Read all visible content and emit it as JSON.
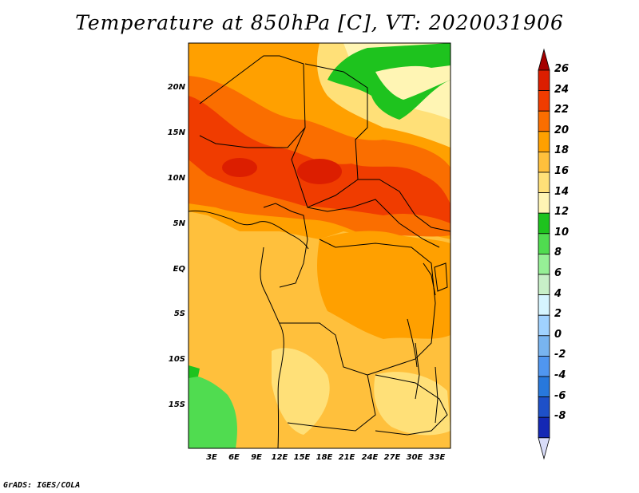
{
  "title": "Temperature at 850hPa [C], VT: 2020031906",
  "credit": "GrADS: IGES/COLA",
  "map": {
    "lat_labels": [
      "20N",
      "15N",
      "10N",
      "5N",
      "EQ",
      "5S",
      "10S",
      "15S"
    ],
    "lon_labels": [
      "3E",
      "6E",
      "9E",
      "12E",
      "15E",
      "18E",
      "21E",
      "24E",
      "27E",
      "30E",
      "33E"
    ],
    "field": "Temperature at 850hPa",
    "units": "C"
  },
  "colorbar": {
    "labels": [
      "26",
      "24",
      "22",
      "20",
      "18",
      "16",
      "14",
      "12",
      "10",
      "8",
      "6",
      "4",
      "2",
      "0",
      "-2",
      "-4",
      "-6",
      "-8"
    ],
    "colors": [
      "#a50000",
      "#dc1e00",
      "#f03c00",
      "#fa6e00",
      "#ffa000",
      "#ffc03c",
      "#ffe078",
      "#fff5b4",
      "#1ec31e",
      "#50dc50",
      "#96f096",
      "#c8f0c8",
      "#d6f5ff",
      "#a0d2ff",
      "#78b4f0",
      "#5096f0",
      "#2878dc",
      "#1e50c8",
      "#1428b4",
      "#0a1478"
    ]
  },
  "colors": {
    "background": "#ffffff",
    "border": "#000000"
  }
}
